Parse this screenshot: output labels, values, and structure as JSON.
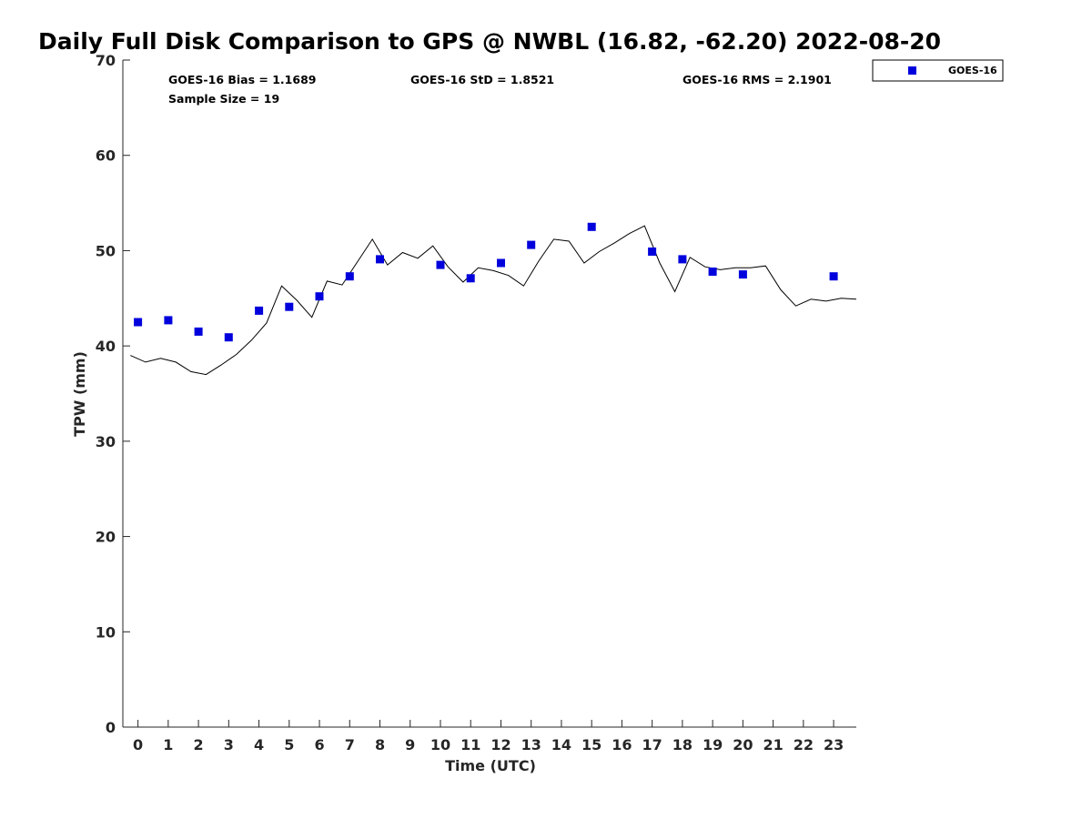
{
  "chart_data": {
    "type": "scatter",
    "title": "Daily Full Disk Comparison to GPS @ NWBL (16.82, -62.20) 2022-08-20",
    "xlabel": "Time (UTC)",
    "ylabel": "TPW (mm)",
    "xlim": [
      -0.5,
      23.75
    ],
    "ylim": [
      0,
      70
    ],
    "xticks": [
      "0",
      "1",
      "2",
      "3",
      "4",
      "5",
      "6",
      "7",
      "8",
      "9",
      "10",
      "11",
      "12",
      "13",
      "14",
      "15",
      "16",
      "17",
      "18",
      "19",
      "20",
      "21",
      "22",
      "23"
    ],
    "yticks": [
      "0",
      "10",
      "20",
      "30",
      "40",
      "50",
      "60",
      "70"
    ],
    "grid": false,
    "legend": {
      "position": "outside-top-right",
      "entries": [
        "GOES-16"
      ]
    },
    "stats": {
      "bias": "GOES-16 Bias = 1.1689",
      "std": "GOES-16 StD = 1.8521",
      "rms": "GOES-16 RMS = 2.1901",
      "sample_size": "Sample Size = 19"
    },
    "series": [
      {
        "name": "GOES-16",
        "kind": "scatter",
        "color": "#0000dd",
        "x": [
          0,
          1,
          2,
          3,
          4,
          5,
          6,
          7,
          8,
          10,
          11,
          12,
          13,
          15,
          17,
          18,
          19,
          20,
          23
        ],
        "y": [
          42.5,
          42.7,
          41.5,
          40.9,
          43.7,
          44.1,
          45.2,
          47.3,
          49.1,
          48.5,
          47.1,
          48.7,
          50.6,
          52.5,
          49.9,
          49.1,
          47.8,
          47.5,
          47.3
        ]
      },
      {
        "kind": "line",
        "color": "#000000",
        "x": [
          -0.25,
          0.25,
          0.75,
          1.25,
          1.75,
          2.25,
          2.75,
          3.25,
          3.75,
          4.25,
          4.75,
          5.25,
          5.75,
          6.25,
          6.75,
          7.25,
          7.75,
          8.25,
          8.75,
          9.25,
          9.75,
          10.25,
          10.75,
          11.25,
          11.75,
          12.25,
          12.75,
          13.25,
          13.75,
          14.25,
          14.75,
          15.25,
          15.75,
          16.25,
          16.75,
          17.25,
          17.75,
          18.25,
          18.75,
          19.25,
          19.75,
          20.25,
          20.75,
          21.25,
          21.75,
          22.25,
          22.75,
          23.25,
          23.75
        ],
        "y": [
          39.0,
          38.3,
          38.7,
          38.3,
          37.3,
          37.0,
          38.0,
          39.1,
          40.6,
          42.4,
          46.3,
          44.8,
          43.0,
          46.8,
          46.4,
          48.8,
          51.2,
          48.5,
          49.8,
          49.2,
          50.5,
          48.3,
          46.7,
          48.2,
          47.9,
          47.4,
          46.3,
          48.9,
          51.2,
          51.0,
          48.7,
          49.9,
          50.8,
          51.8,
          52.6,
          48.7,
          45.7,
          49.3,
          48.3,
          48.0,
          48.2,
          48.2,
          48.4,
          45.9,
          44.2,
          44.9,
          44.7,
          45.0,
          44.9
        ]
      }
    ]
  }
}
